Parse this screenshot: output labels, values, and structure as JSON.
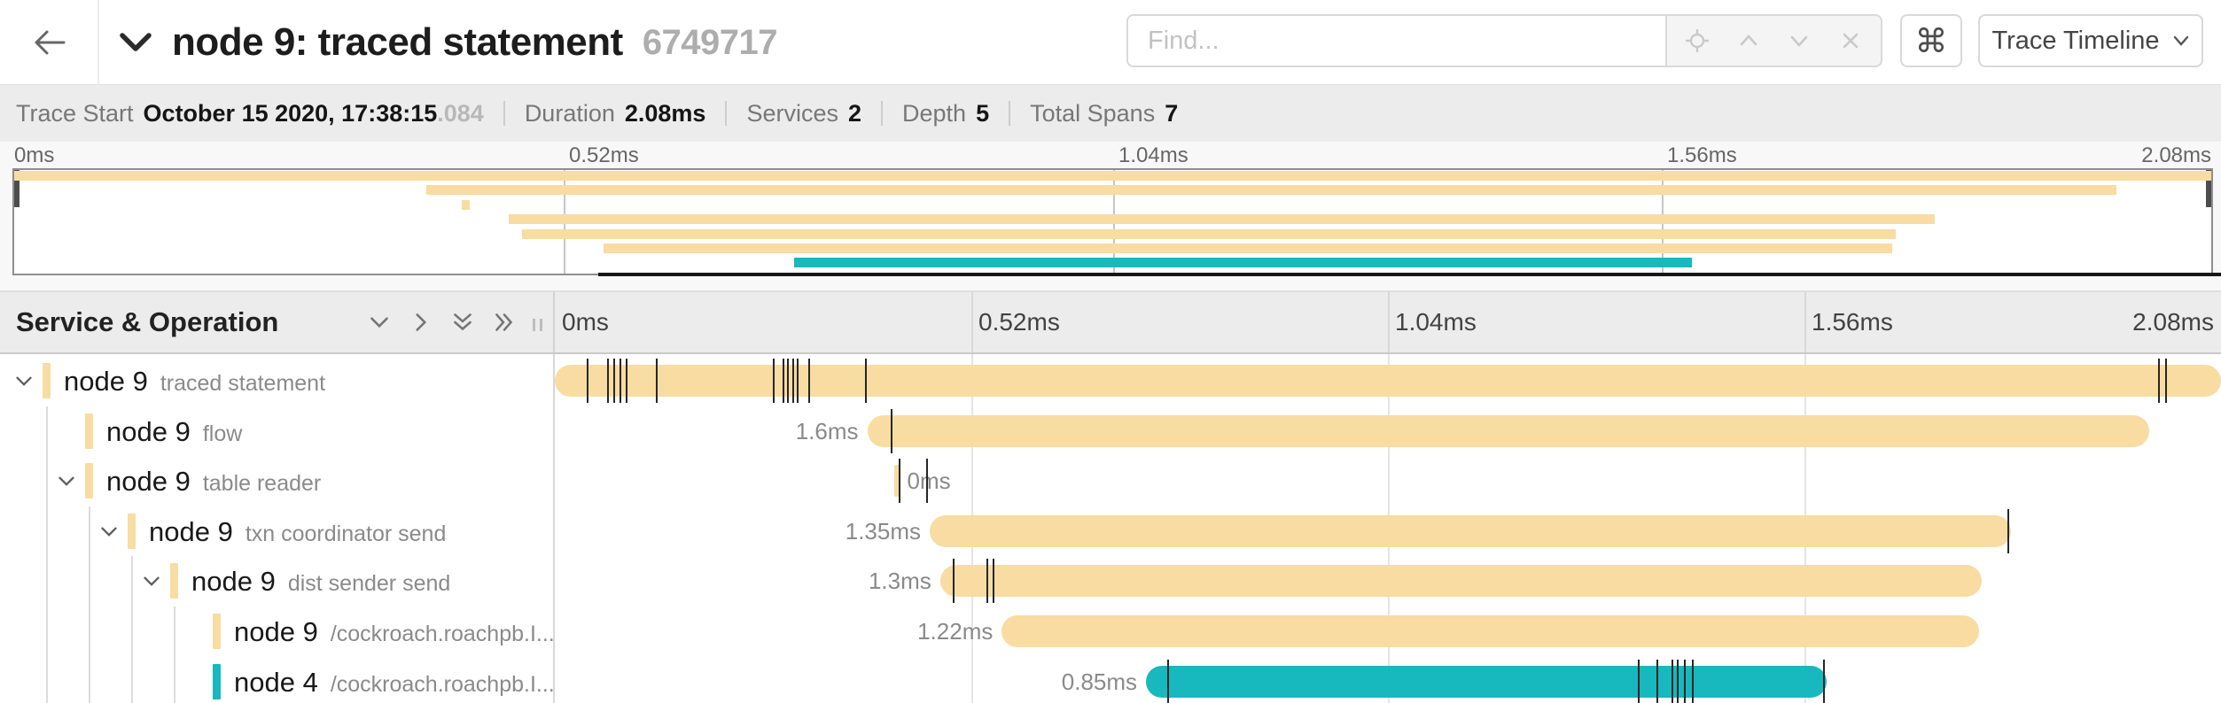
{
  "header": {
    "back_icon": "arrow-left",
    "collapse_icon": "chevron-down",
    "title": "node 9: traced statement",
    "trace_id": "6749717",
    "find_placeholder": "Find...",
    "find_addon_icons": [
      "locate-icon",
      "chevron-up-icon",
      "chevron-down-icon",
      "close-icon"
    ],
    "keyboard_shortcut_label": "⌘",
    "view_selector_label": "Trace Timeline",
    "view_selector_icon": "chevron-down"
  },
  "summary": {
    "items": [
      {
        "label": "Trace Start",
        "value": "October 15 2020, 17:38:15",
        "suffix": ".084"
      },
      {
        "label": "Duration",
        "value": "2.08ms"
      },
      {
        "label": "Services",
        "value": "2"
      },
      {
        "label": "Depth",
        "value": "5"
      },
      {
        "label": "Total Spans",
        "value": "7"
      }
    ]
  },
  "minimap": {
    "ticks": [
      "0ms",
      "0.52ms",
      "1.04ms",
      "1.56ms",
      "2.08ms"
    ],
    "scrubber_icon": "drag-handle"
  },
  "timeline": {
    "left_header": "Service & Operation",
    "header_icons": [
      "collapse-one-icon",
      "expand-one-icon",
      "collapse-all-icon",
      "expand-all-icon"
    ],
    "ticks": [
      "0ms",
      "0.52ms",
      "1.04ms",
      "1.56ms",
      "2.08ms"
    ],
    "duration_ms": 2.08,
    "colors": {
      "tan": "#F8DCA1",
      "teal": "#17B8BE"
    },
    "spans": [
      {
        "service": "node 9",
        "operation": "traced statement",
        "depth": 0,
        "expandable": true,
        "color": "#F8DCA1",
        "start_ms": 0,
        "duration_ms": 2.08,
        "duration_label": "",
        "label_side": "none",
        "log_ticks_ms": [
          0.041,
          0.066,
          0.074,
          0.082,
          0.09,
          0.127,
          0.273,
          0.285,
          0.291,
          0.298,
          0.303,
          0.317,
          0.388,
          2.002,
          2.011
        ]
      },
      {
        "service": "node 9",
        "operation": "flow",
        "depth": 1,
        "expandable": false,
        "color": "#F8DCA1",
        "start_ms": 0.39,
        "duration_ms": 1.6,
        "duration_label": "1.6ms",
        "label_side": "left",
        "log_ticks_ms": [
          0.42
        ]
      },
      {
        "service": "node 9",
        "operation": "table reader",
        "depth": 1,
        "expandable": true,
        "color": "#F8DCA1",
        "start_ms": 0.424,
        "duration_ms": 0.007,
        "duration_label": "0ms",
        "label_side": "right",
        "log_ticks_ms": [
          0.43,
          0.465
        ]
      },
      {
        "service": "node 9",
        "operation": "txn coordinator send",
        "depth": 2,
        "expandable": true,
        "color": "#F8DCA1",
        "start_ms": 0.468,
        "duration_ms": 1.35,
        "duration_label": "1.35ms",
        "label_side": "left",
        "log_ticks_ms": [
          1.815
        ]
      },
      {
        "service": "node 9",
        "operation": "dist sender send",
        "depth": 3,
        "expandable": true,
        "color": "#F8DCA1",
        "start_ms": 0.481,
        "duration_ms": 1.3,
        "duration_label": "1.3ms",
        "label_side": "left",
        "log_ticks_ms": [
          0.498,
          0.54,
          0.548
        ]
      },
      {
        "service": "node 9",
        "operation": "/cockroach.roachpb.I...",
        "depth": 4,
        "expandable": false,
        "color": "#F8DCA1",
        "start_ms": 0.558,
        "duration_ms": 1.22,
        "duration_label": "1.22ms",
        "label_side": "left",
        "log_ticks_ms": []
      },
      {
        "service": "node 4",
        "operation": "/cockroach.roachpb.I...",
        "depth": 4,
        "expandable": false,
        "color": "#17B8BE",
        "start_ms": 0.738,
        "duration_ms": 0.85,
        "duration_label": "0.85ms",
        "label_side": "left",
        "log_ticks_ms": [
          0.766,
          1.353,
          1.376,
          1.395,
          1.402,
          1.411,
          1.421,
          1.584
        ]
      }
    ]
  }
}
